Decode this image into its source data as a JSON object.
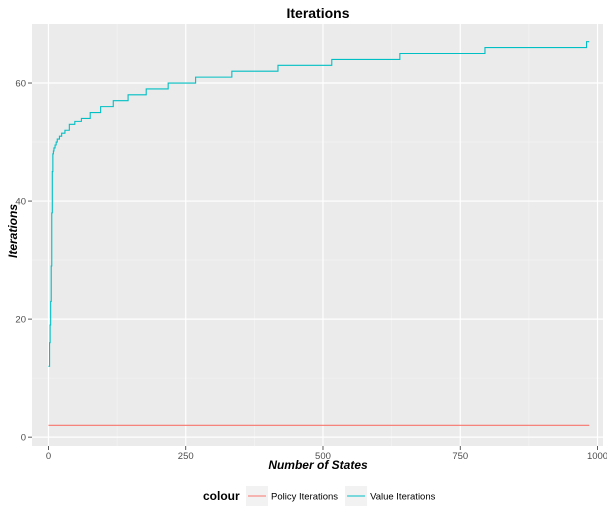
{
  "chart_data": {
    "type": "line",
    "title": "Iterations",
    "xlabel": "Number of States",
    "ylabel": "Iterations",
    "xlim": [
      -30,
      1010
    ],
    "ylim": [
      -1.5,
      70
    ],
    "x_ticks": [
      0,
      250,
      500,
      750,
      1000
    ],
    "x_tick_labels": [
      "0",
      "250",
      "500",
      "750",
      "1000"
    ],
    "y_ticks": [
      0,
      20,
      40,
      60
    ],
    "y_tick_labels": [
      "0",
      "20",
      "40",
      "60"
    ],
    "grid": true,
    "legend": {
      "title": "colour",
      "position": "bottom"
    },
    "series": [
      {
        "name": "Policy Iterations",
        "color": "#F8766D",
        "x": [
          0,
          985
        ],
        "y": [
          2,
          2
        ]
      },
      {
        "name": "Value Iterations",
        "color": "#00BFC4",
        "step": true,
        "x": [
          0,
          2,
          3,
          4,
          5,
          6,
          7,
          8,
          9,
          10,
          12,
          14,
          16,
          20,
          24,
          30,
          38,
          48,
          60,
          76,
          95,
          118,
          145,
          178,
          218,
          268,
          334,
          418,
          516,
          640,
          795,
          980,
          985
        ],
        "y": [
          12,
          16,
          19,
          23,
          29,
          38,
          45,
          48,
          48.5,
          49,
          49.5,
          50,
          50.5,
          51,
          51.5,
          52,
          53,
          53.5,
          54,
          55,
          56,
          57,
          58,
          59,
          60,
          61,
          62,
          63,
          64,
          65,
          66,
          67,
          67
        ]
      }
    ]
  }
}
